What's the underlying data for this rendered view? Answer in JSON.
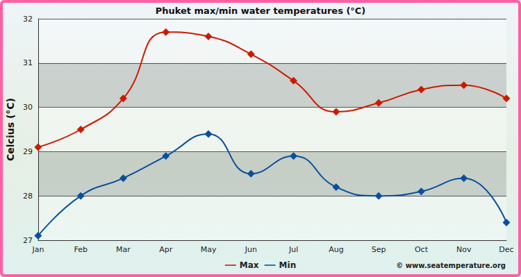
{
  "chart_data": {
    "type": "line",
    "title": "Phuket max/min water temperatures (°C)",
    "y_label": "Celcius (°C)",
    "categories": [
      "Jan",
      "Feb",
      "Mar",
      "Apr",
      "May",
      "Jun",
      "Jul",
      "Aug",
      "Sep",
      "Oct",
      "Nov",
      "Dec"
    ],
    "series": [
      {
        "name": "Max",
        "color": "#cc1a00",
        "values": [
          29.1,
          29.5,
          30.2,
          31.7,
          31.6,
          31.2,
          30.6,
          29.9,
          30.1,
          30.4,
          30.5,
          30.2
        ]
      },
      {
        "name": "Min",
        "color": "#0b4f9c",
        "values": [
          27.1,
          28.0,
          28.4,
          28.9,
          29.4,
          28.5,
          28.9,
          28.2,
          28.0,
          28.1,
          28.4,
          27.4
        ]
      }
    ],
    "ylim": [
      27,
      32
    ],
    "yticks": [
      27,
      28,
      29,
      30,
      31,
      32
    ],
    "grid": true,
    "legend": "bottom",
    "marker": "diamond",
    "line_style": "smooth",
    "annotations": [
      "© www.seatemperature.org"
    ]
  }
}
